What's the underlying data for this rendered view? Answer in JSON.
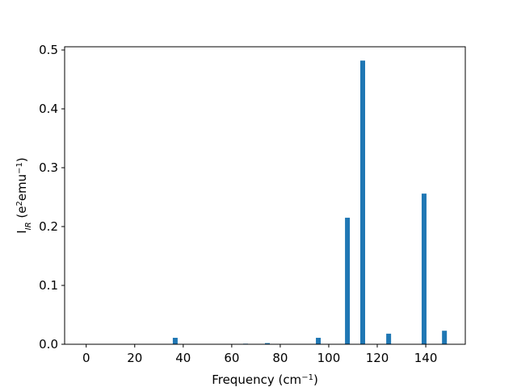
{
  "chart_data": {
    "type": "bar",
    "x": [
      36.7,
      65.7,
      74.7,
      95.7,
      107.7,
      114,
      124.7,
      139.3,
      147.7
    ],
    "values": [
      0.011,
      0.001,
      0.002,
      0.011,
      0.215,
      0.482,
      0.018,
      0.256,
      0.023
    ],
    "color": "#1f77b4",
    "xlim": [
      -8.9,
      156.3
    ],
    "xticks": [
      0,
      20,
      40,
      60,
      80,
      100,
      120,
      140
    ],
    "ylim": [
      0,
      0.5055
    ],
    "yticks": [
      {
        "value": 0,
        "label": "0.0"
      },
      0.1,
      0.2,
      0.3,
      0.4,
      0.5
    ],
    "xlabel": [
      {
        "text": "Frequency (cm"
      },
      {
        "text": "−1",
        "script": "sup"
      },
      {
        "text": ")"
      }
    ],
    "ylabel": [
      {
        "text": "I"
      },
      {
        "text": "IR",
        "script": "sub"
      },
      {
        "text": " (e"
      },
      {
        "text": "2",
        "script": "sup"
      },
      {
        "text": "emu"
      },
      {
        "text": "−1",
        "script": "sup"
      },
      {
        "text": ")"
      }
    ]
  }
}
